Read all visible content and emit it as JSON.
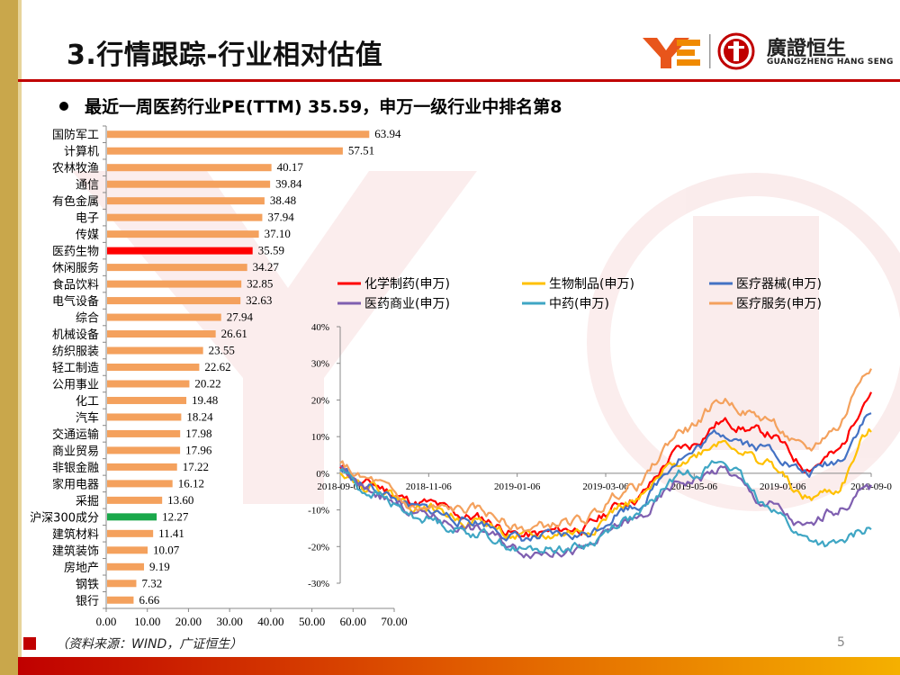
{
  "header": {
    "title": "3.行情跟踪-行业相对估值",
    "subtitle": "最近一周医药行业PE(TTM) 35.59，申万一级行业中排名第8",
    "brand_cn": "廣證恒生",
    "brand_en": "GUANGZHENG HANG SENG"
  },
  "footer": {
    "source": "（资料来源：WIND，广证恒生）",
    "page": "5"
  },
  "colors": {
    "bar": "#f4a15d",
    "highlight": "#ff0000",
    "benchmark": "#1aa84b",
    "accent": "#c00000"
  },
  "chart_data": [
    {
      "type": "bar",
      "orientation": "horizontal",
      "categories": [
        "国防军工",
        "计算机",
        "农林牧渔",
        "通信",
        "有色金属",
        "电子",
        "传媒",
        "医药生物",
        "休闲服务",
        "食品饮料",
        "电气设备",
        "综合",
        "机械设备",
        "纺织服装",
        "轻工制造",
        "公用事业",
        "化工",
        "汽车",
        "交通运输",
        "商业贸易",
        "非银金融",
        "家用电器",
        "采掘",
        "沪深300成分",
        "建筑材料",
        "建筑装饰",
        "房地产",
        "钢铁",
        "银行"
      ],
      "values": [
        63.94,
        57.51,
        40.17,
        39.84,
        38.48,
        37.94,
        37.1,
        35.59,
        34.27,
        32.85,
        32.63,
        27.94,
        26.61,
        23.55,
        22.62,
        20.22,
        19.48,
        18.24,
        17.98,
        17.96,
        17.22,
        16.12,
        13.6,
        12.27,
        11.41,
        10.07,
        9.19,
        7.32,
        6.66
      ],
      "labels": [
        "63.94",
        "57.51",
        "40.17",
        "39.84",
        "38.48",
        "37.94",
        "37.10",
        "35.59",
        "34.27",
        "32.85",
        "32.63",
        "27.94",
        "26.61",
        "23.55",
        "22.62",
        "20.22",
        "19.48",
        "18.24",
        "17.98",
        "17.96",
        "17.22",
        "16.12",
        "13.60",
        "12.27",
        "11.41",
        "10.07",
        "9.19",
        "7.32",
        "6.66"
      ],
      "highlight": "医药生物",
      "benchmark": "沪深300成分",
      "xlim": [
        0,
        70
      ],
      "xticks": [
        "0.00",
        "10.00",
        "20.00",
        "30.00",
        "40.00",
        "50.00",
        "60.00",
        "70.00"
      ]
    },
    {
      "type": "line",
      "x_range": [
        "2018-09-06",
        "2019-09-06"
      ],
      "xticks": [
        "2018-09-06",
        "2018-11-06",
        "2019-01-06",
        "2019-03-06",
        "2019-05-06",
        "2019-07-06",
        "2019-09-0"
      ],
      "ylim": [
        -0.3,
        0.4
      ],
      "yticks": [
        "40%",
        "30%",
        "20%",
        "10%",
        "0%",
        "-10%",
        "-20%",
        "-30%"
      ],
      "legend": [
        "化学制药(申万)",
        "生物制品(申万)",
        "医疗器械(申万)",
        "医药商业(申万)",
        "中药(申万)",
        "医疗服务(申万)"
      ],
      "series": [
        {
          "name": "化学制药(申万)",
          "color": "#ff0000",
          "seed": 11,
          "knots": [
            [
              0,
              0.01
            ],
            [
              0.05,
              -0.03
            ],
            [
              0.15,
              -0.08
            ],
            [
              0.25,
              -0.12
            ],
            [
              0.35,
              -0.17
            ],
            [
              0.45,
              -0.15
            ],
            [
              0.55,
              -0.07
            ],
            [
              0.65,
              0.07
            ],
            [
              0.72,
              0.14
            ],
            [
              0.8,
              0.11
            ],
            [
              0.88,
              0.02
            ],
            [
              0.93,
              0.05
            ],
            [
              1,
              0.22
            ]
          ]
        },
        {
          "name": "生物制品(申万)",
          "color": "#ffc000",
          "seed": 22,
          "knots": [
            [
              0,
              0.01
            ],
            [
              0.05,
              -0.03
            ],
            [
              0.15,
              -0.09
            ],
            [
              0.25,
              -0.13
            ],
            [
              0.35,
              -0.18
            ],
            [
              0.45,
              -0.16
            ],
            [
              0.55,
              -0.08
            ],
            [
              0.65,
              0.04
            ],
            [
              0.72,
              0.09
            ],
            [
              0.8,
              0.03
            ],
            [
              0.88,
              -0.07
            ],
            [
              0.93,
              -0.05
            ],
            [
              1,
              0.11
            ]
          ]
        },
        {
          "name": "医疗器械(申万)",
          "color": "#4472c4",
          "seed": 33,
          "knots": [
            [
              0,
              0.01
            ],
            [
              0.05,
              -0.04
            ],
            [
              0.15,
              -0.1
            ],
            [
              0.25,
              -0.13
            ],
            [
              0.35,
              -0.18
            ],
            [
              0.45,
              -0.17
            ],
            [
              0.55,
              -0.09
            ],
            [
              0.65,
              0.05
            ],
            [
              0.72,
              0.11
            ],
            [
              0.8,
              0.07
            ],
            [
              0.88,
              0.0
            ],
            [
              0.93,
              0.03
            ],
            [
              1,
              0.16
            ]
          ]
        },
        {
          "name": "医药商业(申万)",
          "color": "#7f5fb0",
          "seed": 44,
          "knots": [
            [
              0,
              0.01
            ],
            [
              0.05,
              -0.05
            ],
            [
              0.15,
              -0.11
            ],
            [
              0.25,
              -0.15
            ],
            [
              0.35,
              -0.21
            ],
            [
              0.45,
              -0.21
            ],
            [
              0.55,
              -0.13
            ],
            [
              0.65,
              -0.02
            ],
            [
              0.72,
              0.01
            ],
            [
              0.8,
              -0.08
            ],
            [
              0.88,
              -0.15
            ],
            [
              0.93,
              -0.1
            ],
            [
              1,
              -0.04
            ]
          ]
        },
        {
          "name": "中药(申万)",
          "color": "#3fa6c4",
          "seed": 55,
          "knots": [
            [
              0,
              0.01
            ],
            [
              0.05,
              -0.05
            ],
            [
              0.15,
              -0.12
            ],
            [
              0.25,
              -0.16
            ],
            [
              0.35,
              -0.21
            ],
            [
              0.45,
              -0.2
            ],
            [
              0.55,
              -0.12
            ],
            [
              0.65,
              0.0
            ],
            [
              0.72,
              0.03
            ],
            [
              0.8,
              -0.08
            ],
            [
              0.88,
              -0.18
            ],
            [
              0.93,
              -0.2
            ],
            [
              1,
              -0.15
            ]
          ]
        },
        {
          "name": "医疗服务(申万)",
          "color": "#f4a15d",
          "seed": 66,
          "knots": [
            [
              0,
              0.02
            ],
            [
              0.05,
              -0.02
            ],
            [
              0.15,
              -0.1
            ],
            [
              0.25,
              -0.1
            ],
            [
              0.35,
              -0.15
            ],
            [
              0.45,
              -0.13
            ],
            [
              0.55,
              -0.04
            ],
            [
              0.65,
              0.12
            ],
            [
              0.72,
              0.2
            ],
            [
              0.8,
              0.15
            ],
            [
              0.88,
              0.06
            ],
            [
              0.93,
              0.12
            ],
            [
              1,
              0.3
            ]
          ]
        }
      ]
    }
  ]
}
